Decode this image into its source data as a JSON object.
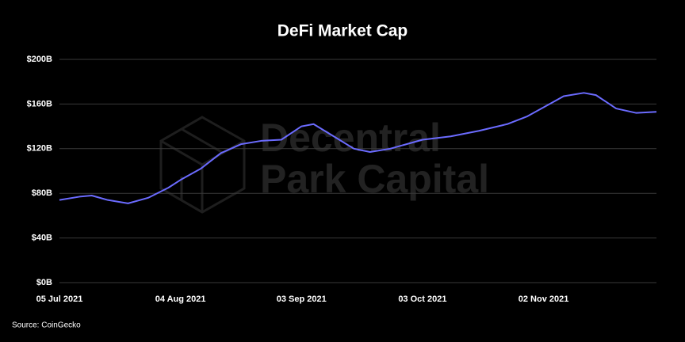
{
  "chart_data": {
    "type": "line",
    "title": "DeFi Market Cap",
    "source": "Source: CoinGecko",
    "watermark": [
      "Decentral",
      "Park Capital"
    ],
    "x": [
      "2021-07-05",
      "2021-07-10",
      "2021-07-13",
      "2021-07-17",
      "2021-07-22",
      "2021-07-27",
      "2021-08-01",
      "2021-08-04",
      "2021-08-09",
      "2021-08-14",
      "2021-08-19",
      "2021-08-24",
      "2021-08-29",
      "2021-09-03",
      "2021-09-06",
      "2021-09-11",
      "2021-09-16",
      "2021-09-20",
      "2021-09-25",
      "2021-09-30",
      "2021-10-03",
      "2021-10-10",
      "2021-10-17",
      "2021-10-24",
      "2021-10-29",
      "2021-11-02",
      "2021-11-07",
      "2021-11-12",
      "2021-11-15",
      "2021-11-20",
      "2021-11-25",
      "2021-11-30"
    ],
    "series": [
      {
        "name": "DeFi Market Cap",
        "color": "#6b6bff",
        "values": [
          74,
          77,
          78,
          74,
          71,
          76,
          85,
          92,
          102,
          116,
          124,
          127,
          128,
          140,
          142,
          131,
          120,
          117,
          120,
          125,
          128,
          131,
          136,
          142,
          149,
          157,
          167,
          170,
          168,
          156,
          152,
          153
        ]
      }
    ],
    "xlim": [
      "2021-07-05",
      "2021-11-30"
    ],
    "xticks": [
      {
        "value": "2021-07-05",
        "label": "05 Jul 2021"
      },
      {
        "value": "2021-08-04",
        "label": "04 Aug 2021"
      },
      {
        "value": "2021-09-03",
        "label": "03 Sep 2021"
      },
      {
        "value": "2021-10-03",
        "label": "03 Oct 2021"
      },
      {
        "value": "2021-11-02",
        "label": "02 Nov 2021"
      }
    ],
    "ylim": [
      0,
      200
    ],
    "yticks": [
      {
        "value": 0,
        "label": "$0B"
      },
      {
        "value": 40,
        "label": "$40B"
      },
      {
        "value": 80,
        "label": "$80B"
      },
      {
        "value": 120,
        "label": "$120B"
      },
      {
        "value": 160,
        "label": "$160B"
      },
      {
        "value": 200,
        "label": "$200B"
      }
    ],
    "grid": true
  }
}
